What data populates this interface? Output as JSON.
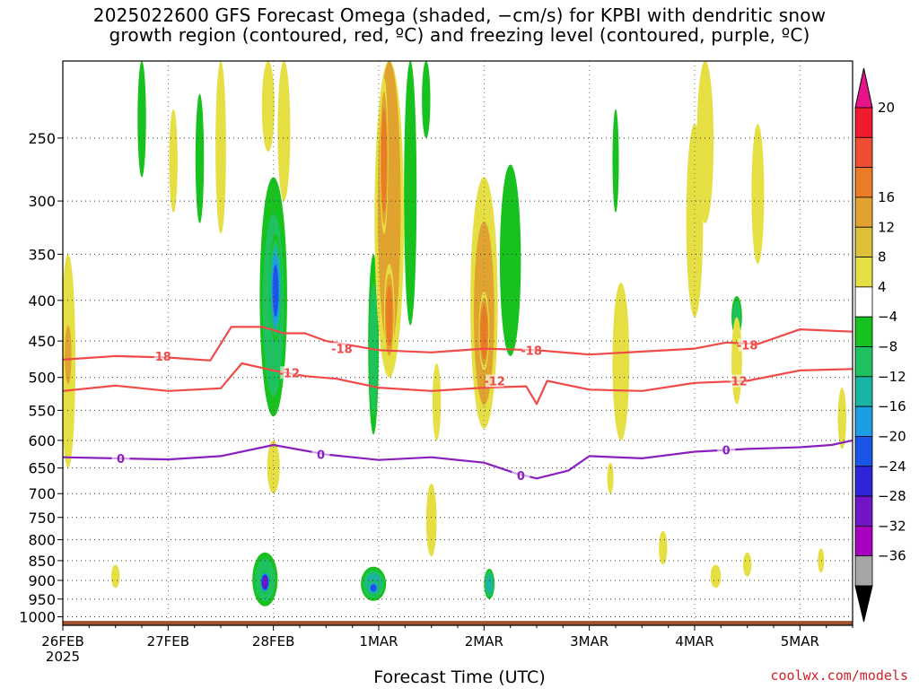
{
  "title_lines": [
    "2025022600 GFS Forecast Omega (shaded, −cm/s) for KPBI with dendritic snow",
    "growth region (contoured, red, ºC) and freezing level (contoured, purple, ºC)"
  ],
  "credit": "coolwx.com/models",
  "chart_data": {
    "type": "heatmap",
    "title": "2025022600 GFS Forecast Omega (shaded, −cm/s) for KPBI with dendritic snow growth region (contoured, red, ºC) and freezing level (contoured, purple, ºC)",
    "xlabel": "Forecast Time (UTC)",
    "ylabel": "",
    "x_range_days": [
      0,
      7.5
    ],
    "x_ticks": [
      {
        "x": 0,
        "label": "26FEB",
        "sub": "2025"
      },
      {
        "x": 1,
        "label": "27FEB"
      },
      {
        "x": 2,
        "label": "28FEB"
      },
      {
        "x": 3,
        "label": "1MAR"
      },
      {
        "x": 4,
        "label": "2MAR"
      },
      {
        "x": 5,
        "label": "3MAR"
      },
      {
        "x": 6,
        "label": "4MAR"
      },
      {
        "x": 7,
        "label": "5MAR"
      }
    ],
    "y_ticks": [
      250,
      300,
      350,
      400,
      450,
      500,
      550,
      600,
      650,
      700,
      750,
      800,
      850,
      900,
      950,
      1000
    ],
    "y_range_hpa": [
      200,
      1025
    ],
    "grid": true,
    "colorbar": {
      "labels": [
        "20",
        "16",
        "12",
        "8",
        "4",
        "−4",
        "−8",
        "−12",
        "−16",
        "−20",
        "−24",
        "−28",
        "−32",
        "−36"
      ],
      "colors": [
        "#ee1c2e",
        "#ef4e34",
        "#ea7c26",
        "#e1a32f",
        "#ddc13a",
        "#e6df44",
        "#ffffff",
        "#17c21e",
        "#1ec35f",
        "#1ab4a2",
        "#1d9de4",
        "#1b55e8",
        "#3023d8",
        "#7016c6",
        "#a700c0",
        "#a6a6a6"
      ],
      "over_color": "#e5148a",
      "under_color": "#000000",
      "placement": "right"
    },
    "contours": [
      {
        "label": "-18",
        "color": "#f04a48",
        "points": [
          [
            0,
            475
          ],
          [
            0.5,
            470
          ],
          [
            1.0,
            472
          ],
          [
            1.4,
            476
          ],
          [
            1.6,
            432
          ],
          [
            1.9,
            432
          ],
          [
            2.1,
            440
          ],
          [
            2.3,
            440
          ],
          [
            2.5,
            450
          ],
          [
            3.0,
            462
          ],
          [
            3.5,
            465
          ],
          [
            4.0,
            460
          ],
          [
            4.5,
            462
          ],
          [
            5.0,
            468
          ],
          [
            5.5,
            464
          ],
          [
            6.0,
            460
          ],
          [
            6.3,
            452
          ],
          [
            6.6,
            454
          ],
          [
            7.0,
            435
          ],
          [
            7.5,
            438
          ]
        ]
      },
      {
        "label": "-12",
        "color": "#f04a48",
        "points": [
          [
            0,
            520
          ],
          [
            0.5,
            512
          ],
          [
            1.0,
            520
          ],
          [
            1.5,
            516
          ],
          [
            1.7,
            480
          ],
          [
            2.0,
            490
          ],
          [
            2.3,
            498
          ],
          [
            2.6,
            502
          ],
          [
            3.0,
            515
          ],
          [
            3.5,
            520
          ],
          [
            4.0,
            515
          ],
          [
            4.4,
            513
          ],
          [
            4.5,
            540
          ],
          [
            4.6,
            505
          ],
          [
            5.0,
            518
          ],
          [
            5.5,
            520
          ],
          [
            6.0,
            508
          ],
          [
            6.5,
            505
          ],
          [
            7.0,
            490
          ],
          [
            7.5,
            488
          ]
        ]
      },
      {
        "label": "0",
        "color": "#8a1fbf",
        "points": [
          [
            0,
            630
          ],
          [
            0.5,
            632
          ],
          [
            1.0,
            634
          ],
          [
            1.5,
            628
          ],
          [
            2.0,
            608
          ],
          [
            2.5,
            625
          ],
          [
            3.0,
            635
          ],
          [
            3.5,
            630
          ],
          [
            4.0,
            640
          ],
          [
            4.3,
            660
          ],
          [
            4.5,
            670
          ],
          [
            4.8,
            655
          ],
          [
            5.0,
            628
          ],
          [
            5.5,
            632
          ],
          [
            6.0,
            620
          ],
          [
            6.5,
            615
          ],
          [
            7.0,
            612
          ],
          [
            7.3,
            608
          ],
          [
            7.5,
            600
          ]
        ]
      }
    ],
    "contour_labels": [
      {
        "text": "-18",
        "x": 0.93,
        "y": 470
      },
      {
        "text": "-18",
        "x": 2.65,
        "y": 460
      },
      {
        "text": "-18",
        "x": 4.45,
        "y": 462
      },
      {
        "text": "-18",
        "x": 6.5,
        "y": 455
      },
      {
        "text": "-12",
        "x": 2.15,
        "y": 493
      },
      {
        "text": "-12",
        "x": 4.1,
        "y": 505
      },
      {
        "text": "-12",
        "x": 6.4,
        "y": 505
      },
      {
        "text": "0",
        "x": 0.55,
        "y": 632
      },
      {
        "text": "0",
        "x": 2.45,
        "y": 625
      },
      {
        "text": "0",
        "x": 4.35,
        "y": 664
      },
      {
        "text": "0",
        "x": 6.3,
        "y": 617
      }
    ],
    "omega_blobs": [
      {
        "x": 2.0,
        "p": 420,
        "rx": 0.13,
        "rp": 140,
        "v": -9
      },
      {
        "x": 2.02,
        "p": 390,
        "rx": 0.06,
        "rp": 60,
        "v": -20
      },
      {
        "x": 1.92,
        "p": 900,
        "rx": 0.12,
        "rp": 70,
        "v": -10
      },
      {
        "x": 1.92,
        "p": 905,
        "rx": 0.05,
        "rp": 30,
        "v": -30
      },
      {
        "x": 2.95,
        "p": 910,
        "rx": 0.12,
        "rp": 45,
        "v": -12
      },
      {
        "x": 2.95,
        "p": 920,
        "rx": 0.06,
        "rp": 20,
        "v": -20
      },
      {
        "x": 2.95,
        "p": 470,
        "rx": 0.05,
        "rp": 120,
        "v": -8
      },
      {
        "x": 4.05,
        "p": 910,
        "rx": 0.05,
        "rp": 40,
        "v": -12
      },
      {
        "x": 3.3,
        "p": 300,
        "rx": 0.06,
        "rp": 130,
        "v": -6
      },
      {
        "x": 4.25,
        "p": 370,
        "rx": 0.1,
        "rp": 100,
        "v": -7
      },
      {
        "x": 6.4,
        "p": 420,
        "rx": 0.05,
        "rp": 25,
        "v": -8
      },
      {
        "x": 1.3,
        "p": 270,
        "rx": 0.04,
        "rp": 50,
        "v": -6
      },
      {
        "x": 5.25,
        "p": 270,
        "rx": 0.03,
        "rp": 40,
        "v": -6
      },
      {
        "x": 3.1,
        "p": 330,
        "rx": 0.14,
        "rp": 170,
        "v": 9
      },
      {
        "x": 3.05,
        "p": 270,
        "rx": 0.04,
        "rp": 60,
        "v": 14
      },
      {
        "x": 3.1,
        "p": 420,
        "rx": 0.05,
        "rp": 60,
        "v": 12
      },
      {
        "x": 4.0,
        "p": 430,
        "rx": 0.13,
        "rp": 150,
        "v": 8
      },
      {
        "x": 4.0,
        "p": 440,
        "rx": 0.05,
        "rp": 50,
        "v": 15
      },
      {
        "x": 0.05,
        "p": 500,
        "rx": 0.07,
        "rp": 150,
        "v": 6
      },
      {
        "x": 0.05,
        "p": 470,
        "rx": 0.04,
        "rp": 50,
        "v": 10
      },
      {
        "x": 2.1,
        "p": 230,
        "rx": 0.06,
        "rp": 70,
        "v": 6
      },
      {
        "x": 5.3,
        "p": 490,
        "rx": 0.08,
        "rp": 110,
        "v": 5
      },
      {
        "x": 6.1,
        "p": 260,
        "rx": 0.08,
        "rp": 60,
        "v": 5
      },
      {
        "x": 6.0,
        "p": 330,
        "rx": 0.08,
        "rp": 90,
        "v": 5
      },
      {
        "x": 6.6,
        "p": 300,
        "rx": 0.06,
        "rp": 60,
        "v": 5
      },
      {
        "x": 6.4,
        "p": 480,
        "rx": 0.05,
        "rp": 60,
        "v": 6
      },
      {
        "x": 1.5,
        "p": 260,
        "rx": 0.05,
        "rp": 70,
        "v": 5
      },
      {
        "x": 1.05,
        "p": 270,
        "rx": 0.04,
        "rp": 40,
        "v": 5
      },
      {
        "x": 2.0,
        "p": 650,
        "rx": 0.06,
        "rp": 50,
        "v": 6
      },
      {
        "x": 3.55,
        "p": 540,
        "rx": 0.04,
        "rp": 60,
        "v": 5
      },
      {
        "x": 5.7,
        "p": 820,
        "rx": 0.04,
        "rp": 40,
        "v": 5
      },
      {
        "x": 5.2,
        "p": 670,
        "rx": 0.03,
        "rp": 30,
        "v": 5
      },
      {
        "x": 6.2,
        "p": 890,
        "rx": 0.05,
        "rp": 30,
        "v": 5
      },
      {
        "x": 0.5,
        "p": 890,
        "rx": 0.04,
        "rp": 30,
        "v": 5
      },
      {
        "x": 7.4,
        "p": 565,
        "rx": 0.04,
        "rp": 50,
        "v": 5
      },
      {
        "x": 7.2,
        "p": 850,
        "rx": 0.03,
        "rp": 30,
        "v": 5
      },
      {
        "x": 0.75,
        "p": 230,
        "rx": 0.04,
        "rp": 50,
        "v": -6
      },
      {
        "x": 3.45,
        "p": 210,
        "rx": 0.04,
        "rp": 40,
        "v": -6
      },
      {
        "x": 1.95,
        "p": 220,
        "rx": 0.06,
        "rp": 40,
        "v": 6
      },
      {
        "x": 3.5,
        "p": 760,
        "rx": 0.05,
        "rp": 80,
        "v": 5
      },
      {
        "x": 6.5,
        "p": 860,
        "rx": 0.04,
        "rp": 30,
        "v": 5
      }
    ],
    "terrain_color": "#a0522d"
  }
}
